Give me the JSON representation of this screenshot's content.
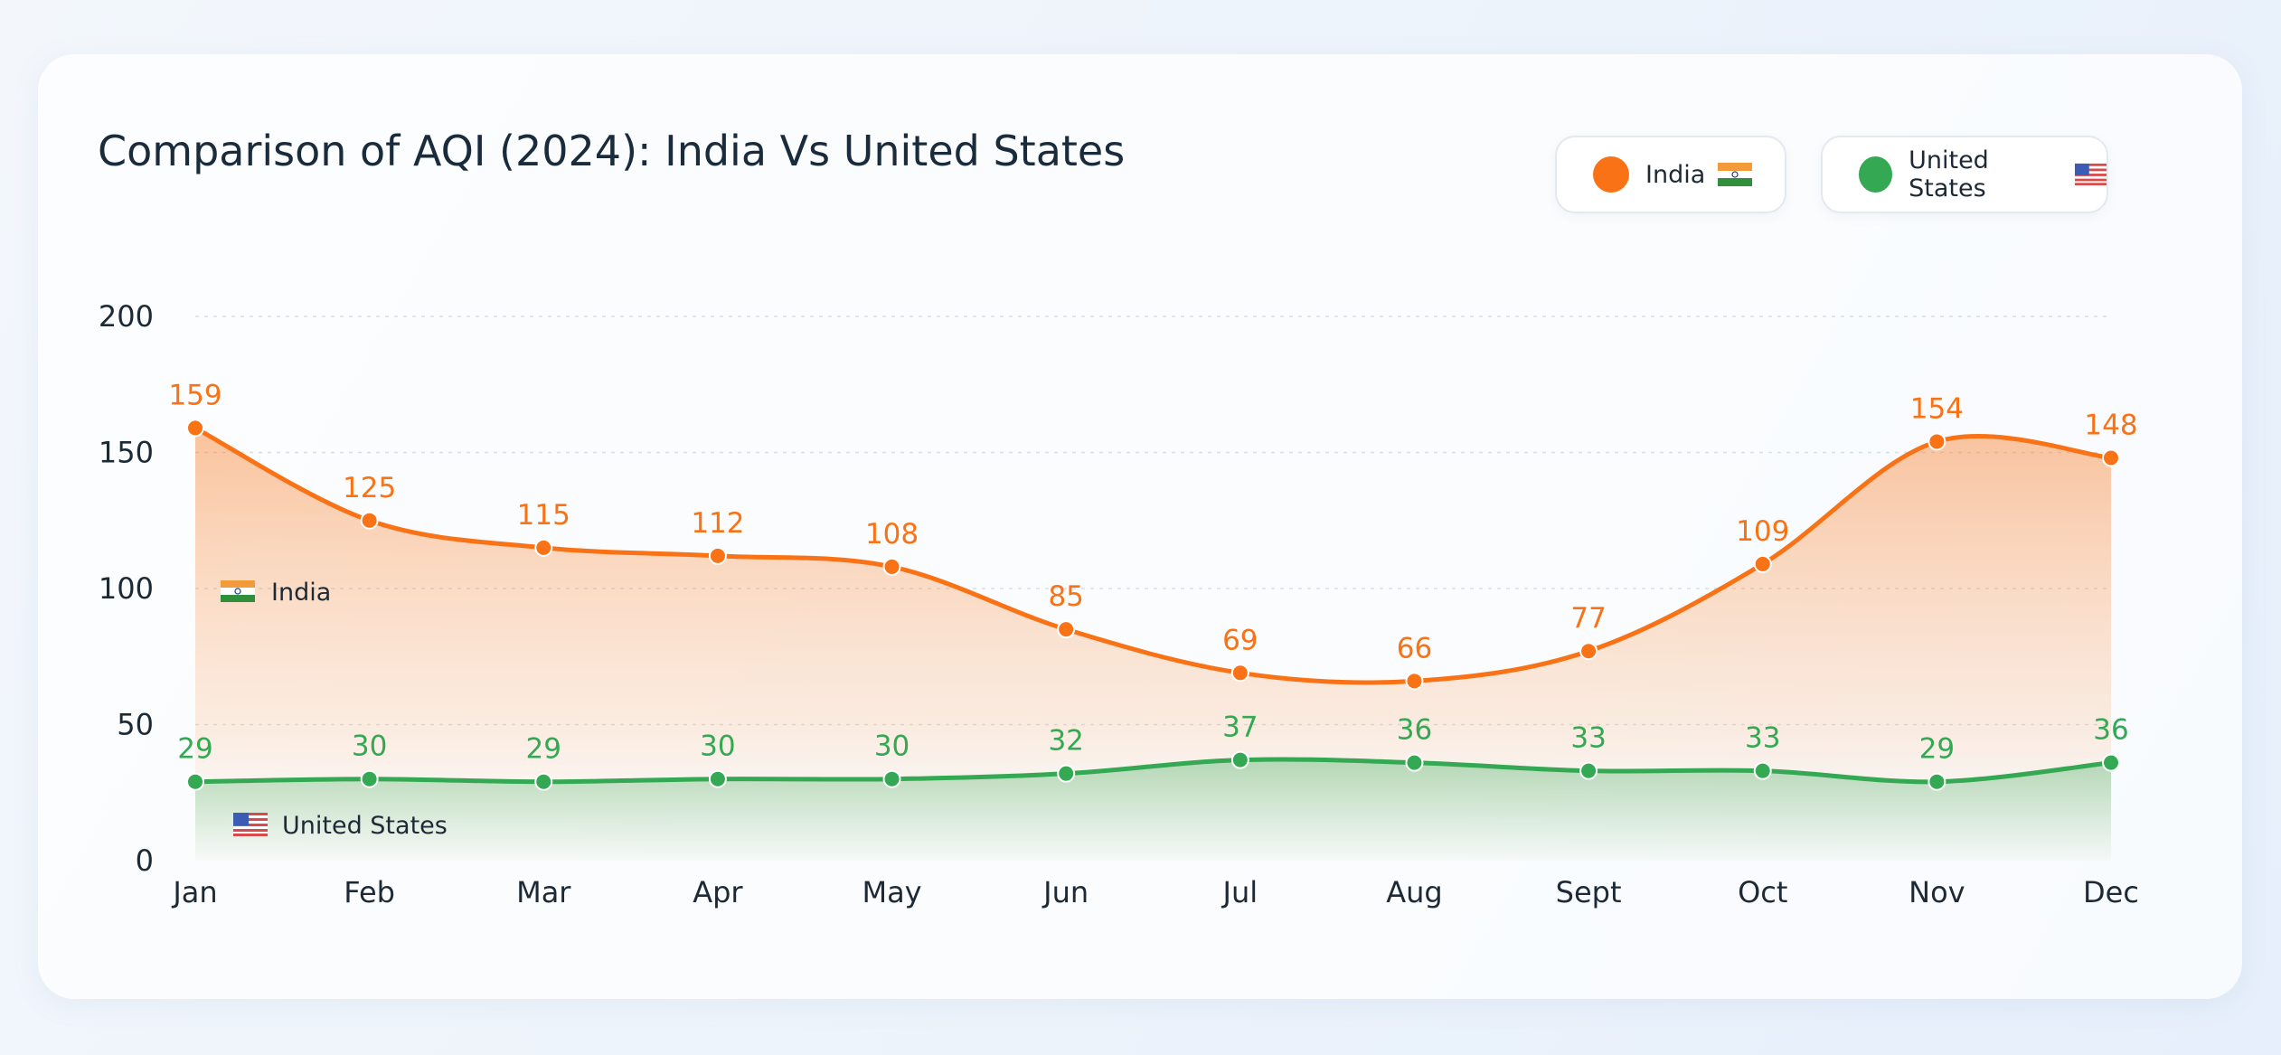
{
  "title": "Comparison of AQI (2024): India Vs United States",
  "legend": [
    {
      "label": "India",
      "color": "#f97316",
      "icon": "india-flag-icon"
    },
    {
      "label": "United States",
      "color": "#34a853",
      "icon": "us-flag-icon"
    }
  ],
  "chart_data": {
    "type": "area",
    "title": "Comparison of AQI (2024): India Vs United States",
    "categories": [
      "Jan",
      "Feb",
      "Mar",
      "Apr",
      "May",
      "Jun",
      "Jul",
      "Aug",
      "Sept",
      "Oct",
      "Nov",
      "Dec"
    ],
    "series": [
      {
        "name": "India",
        "color": "#f97316",
        "values": [
          159,
          125,
          115,
          112,
          108,
          85,
          69,
          66,
          77,
          109,
          154,
          148
        ]
      },
      {
        "name": "United States",
        "color": "#34a853",
        "values": [
          29,
          30,
          29,
          30,
          30,
          32,
          37,
          36,
          33,
          33,
          29,
          36
        ]
      }
    ],
    "yticks": [
      0,
      50,
      100,
      150,
      200
    ],
    "ylim": [
      0,
      200
    ],
    "grid": true,
    "legend_position": "top-right",
    "inline_labels": [
      {
        "series": "India",
        "label": "India",
        "icon": "india-flag-icon"
      },
      {
        "series": "United States",
        "label": "United States",
        "icon": "us-flag-icon"
      }
    ]
  }
}
